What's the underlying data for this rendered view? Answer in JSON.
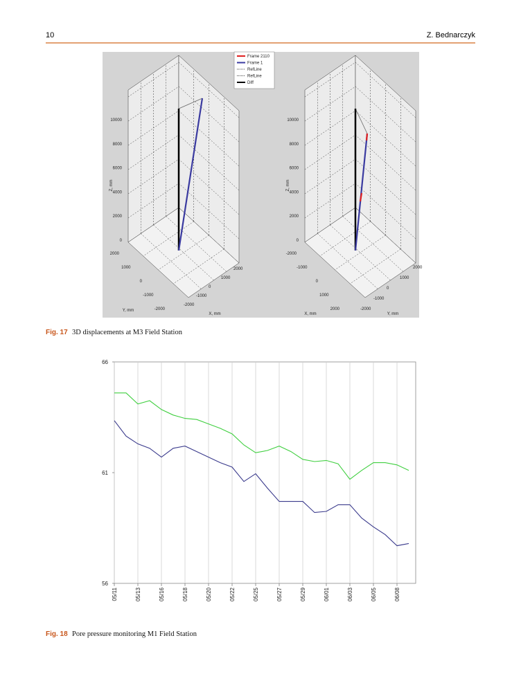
{
  "header": {
    "page_number": "10",
    "author": "Z. Bednarczyk"
  },
  "figure17": {
    "legend": [
      "Frame 2110",
      "Frame 1",
      "RefLine",
      "RefLine",
      "Diff"
    ],
    "left": {
      "z_label": "Z, mm",
      "left_edge_label": "Y, mm",
      "right_edge_label": "X, mm",
      "zticks": [
        10000,
        8000,
        6000,
        4000,
        2000,
        0
      ],
      "left_edge_ticks": [
        2000,
        1000,
        0,
        -1000,
        -2000
      ],
      "right_edge_ticks": [
        -2000,
        -1000,
        0,
        1000,
        2000
      ]
    },
    "right": {
      "z_label": "Z, mm",
      "left_edge_label": "X, mm",
      "right_edge_label": "Y, mm",
      "zticks": [
        10000,
        8000,
        6000,
        4000,
        2000,
        0
      ],
      "left_edge_ticks": [
        -2000,
        -1000,
        0,
        1000,
        2000
      ],
      "right_edge_ticks": [
        -2000,
        -1000,
        0,
        1000,
        2000
      ]
    },
    "caption": {
      "label": "Fig. 17",
      "text": "3D displacements at M3 Field Station"
    }
  },
  "chart_data": {
    "type": "line",
    "categories": [
      "05/11",
      null,
      "05/13",
      null,
      "05/16",
      null,
      "05/18",
      null,
      "05/20",
      null,
      "05/22",
      null,
      "05/25",
      null,
      "05/27",
      null,
      "05/29",
      null,
      "06/01",
      null,
      "06/03",
      null,
      "06/05",
      null,
      "06/08",
      null
    ],
    "series": [
      {
        "color": "#3fcf3f",
        "values": [
          64.6,
          64.6,
          64.1,
          64.25,
          63.85,
          63.6,
          63.45,
          63.4,
          63.2,
          63.0,
          62.75,
          62.25,
          61.9,
          62.0,
          62.2,
          61.95,
          61.6,
          61.5,
          61.55,
          61.4,
          60.7,
          61.1,
          61.45,
          61.45,
          61.35,
          61.1
        ]
      },
      {
        "color": "#3a3a8c",
        "values": [
          63.35,
          62.65,
          62.3,
          62.1,
          61.7,
          62.1,
          62.2,
          61.95,
          61.7,
          61.45,
          61.25,
          60.6,
          60.95,
          60.3,
          59.7,
          59.7,
          59.7,
          59.2,
          59.25,
          59.55,
          59.55,
          58.95,
          58.55,
          58.2,
          57.7,
          57.8
        ]
      }
    ],
    "ylim": [
      56,
      66
    ],
    "yticks": [
      56,
      61,
      66
    ],
    "grid": "x"
  },
  "figure18": {
    "caption": {
      "label": "Fig. 18",
      "text": "Pore pressure monitoring M1 Field Station"
    }
  }
}
